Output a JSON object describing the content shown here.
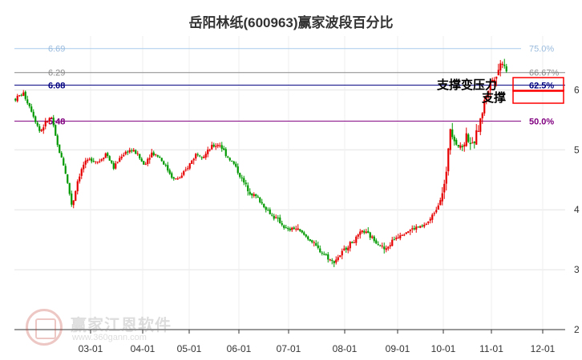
{
  "chart_data": {
    "type": "candlestick",
    "title": "岳阳林纸(600963)赢家波段百分比",
    "xlabel": "",
    "ylabel": "",
    "x_ticks": [
      "03-01",
      "04-01",
      "05-01",
      "06-01",
      "07-01",
      "08-01",
      "09-01",
      "10-01",
      "11-01",
      "12-01"
    ],
    "y_ticks": [
      3,
      4,
      5,
      6
    ],
    "ylim": [
      2.0,
      6.9
    ],
    "grid": true,
    "levels": [
      {
        "price": "6.69",
        "percent": "75.0%",
        "value": 6.69,
        "color": "#aaccee"
      },
      {
        "price": "6.29",
        "percent": "66.67%",
        "value": 6.29,
        "color": "#888888"
      },
      {
        "price": "6.08",
        "percent": "62.5%",
        "value": 6.08,
        "color": "#000080"
      },
      {
        "price": "5.48",
        "percent": "50.0%",
        "value": 5.48,
        "color": "#800080"
      }
    ],
    "annotations": [
      "支撑变压力",
      "支撑"
    ],
    "colors": {
      "up": "#e60000",
      "down": "#009900"
    },
    "price_path": [
      [
        0,
        5.85
      ],
      [
        4,
        5.95
      ],
      [
        8,
        5.7
      ],
      [
        13,
        5.3
      ],
      [
        16,
        5.45
      ],
      [
        19,
        5.55
      ],
      [
        22,
        5.1
      ],
      [
        26,
        4.7
      ],
      [
        30,
        4.05
      ],
      [
        33,
        4.5
      ],
      [
        36,
        4.75
      ],
      [
        40,
        4.85
      ],
      [
        44,
        4.8
      ],
      [
        48,
        4.95
      ],
      [
        52,
        4.7
      ],
      [
        56,
        4.9
      ],
      [
        60,
        5.0
      ],
      [
        64,
        4.95
      ],
      [
        68,
        4.75
      ],
      [
        72,
        4.95
      ],
      [
        76,
        4.9
      ],
      [
        80,
        4.7
      ],
      [
        84,
        4.5
      ],
      [
        88,
        4.55
      ],
      [
        92,
        4.75
      ],
      [
        96,
        4.95
      ],
      [
        100,
        4.9
      ],
      [
        104,
        5.05
      ],
      [
        108,
        5.1
      ],
      [
        112,
        4.9
      ],
      [
        116,
        4.75
      ],
      [
        120,
        4.5
      ],
      [
        124,
        4.3
      ],
      [
        128,
        4.2
      ],
      [
        132,
        4.05
      ],
      [
        136,
        3.9
      ],
      [
        140,
        3.8
      ],
      [
        144,
        3.65
      ],
      [
        148,
        3.7
      ],
      [
        152,
        3.6
      ],
      [
        156,
        3.5
      ],
      [
        160,
        3.35
      ],
      [
        164,
        3.25
      ],
      [
        168,
        3.12
      ],
      [
        172,
        3.25
      ],
      [
        176,
        3.4
      ],
      [
        180,
        3.5
      ],
      [
        184,
        3.65
      ],
      [
        188,
        3.55
      ],
      [
        192,
        3.45
      ],
      [
        196,
        3.32
      ],
      [
        200,
        3.5
      ],
      [
        204,
        3.6
      ],
      [
        208,
        3.65
      ],
      [
        212,
        3.7
      ],
      [
        216,
        3.72
      ],
      [
        220,
        3.85
      ],
      [
        224,
        4.1
      ],
      [
        228,
        4.5
      ],
      [
        230,
        5.4
      ],
      [
        233,
        5.15
      ],
      [
        236,
        5.0
      ],
      [
        239,
        5.25
      ],
      [
        242,
        5.05
      ],
      [
        246,
        5.45
      ],
      [
        249,
        5.9
      ],
      [
        252,
        6.15
      ],
      [
        255,
        6.3
      ],
      [
        258,
        6.5
      ],
      [
        260,
        6.35
      ]
    ]
  }
}
